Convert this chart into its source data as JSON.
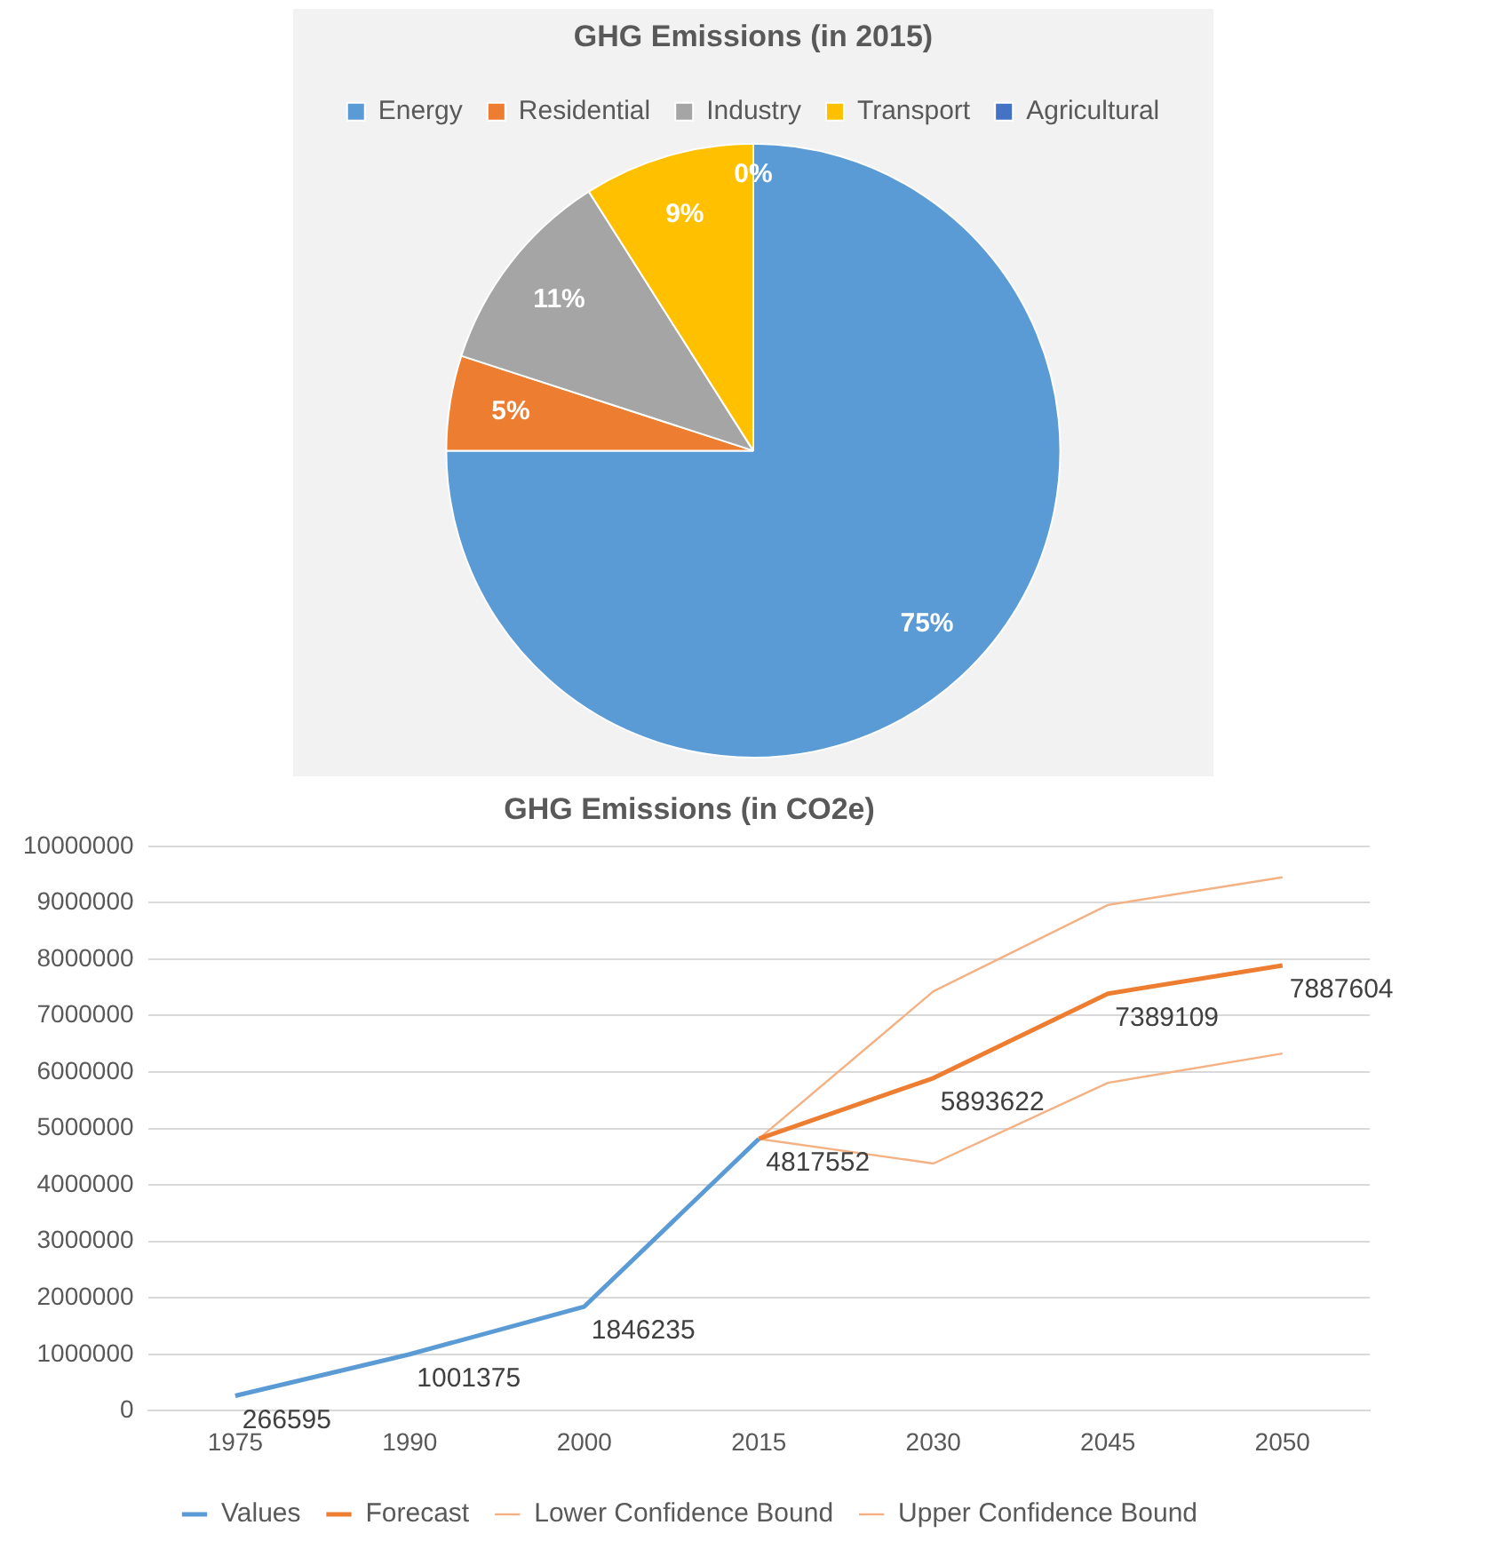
{
  "chart_data": [
    {
      "type": "pie",
      "title": "GHG Emissions (in 2015)",
      "categories": [
        "Energy",
        "Residential",
        "Industry",
        "Transport",
        "Agricultural"
      ],
      "values": [
        75,
        5,
        11,
        9,
        0
      ],
      "colors": [
        "#5b9bd5",
        "#ed7d31",
        "#a5a5a5",
        "#ffc000",
        "#4472c4"
      ],
      "value_labels": [
        "75%",
        "5%",
        "11%",
        "9%",
        "0%"
      ],
      "legend": "top"
    },
    {
      "type": "line",
      "title": "GHG Emissions (in CO2e)",
      "categories": [
        "1975",
        "1990",
        "2000",
        "2015",
        "2030",
        "2045",
        "2050"
      ],
      "series": [
        {
          "name": "Values",
          "color": "#5b9bd5",
          "values": [
            266595,
            1001375,
            1846235,
            4817552,
            null,
            null,
            null
          ],
          "value_labels": [
            "266595",
            "1001375",
            "1846235",
            "4817552",
            null,
            null,
            null
          ]
        },
        {
          "name": "Forecast",
          "color": "#ed7d31",
          "values": [
            null,
            null,
            null,
            4817552,
            5893622,
            7389109,
            7887604
          ],
          "value_labels": [
            null,
            null,
            null,
            null,
            "5893622",
            "7389109",
            "7887604"
          ]
        },
        {
          "name": "Lower Confidence Bound",
          "color": "#f4b183",
          "values": [
            null,
            null,
            null,
            4817552,
            4380000,
            5810000,
            6330000
          ]
        },
        {
          "name": "Upper Confidence Bound",
          "color": "#f4b183",
          "values": [
            null,
            null,
            null,
            4817552,
            7430000,
            8960000,
            9450000
          ]
        }
      ],
      "ylim": [
        0,
        10000000
      ],
      "yticks": [
        0,
        1000000,
        2000000,
        3000000,
        4000000,
        5000000,
        6000000,
        7000000,
        8000000,
        9000000,
        10000000
      ],
      "grid": "y",
      "legend": "bottom",
      "marker": "none",
      "line_style": "solid"
    }
  ]
}
